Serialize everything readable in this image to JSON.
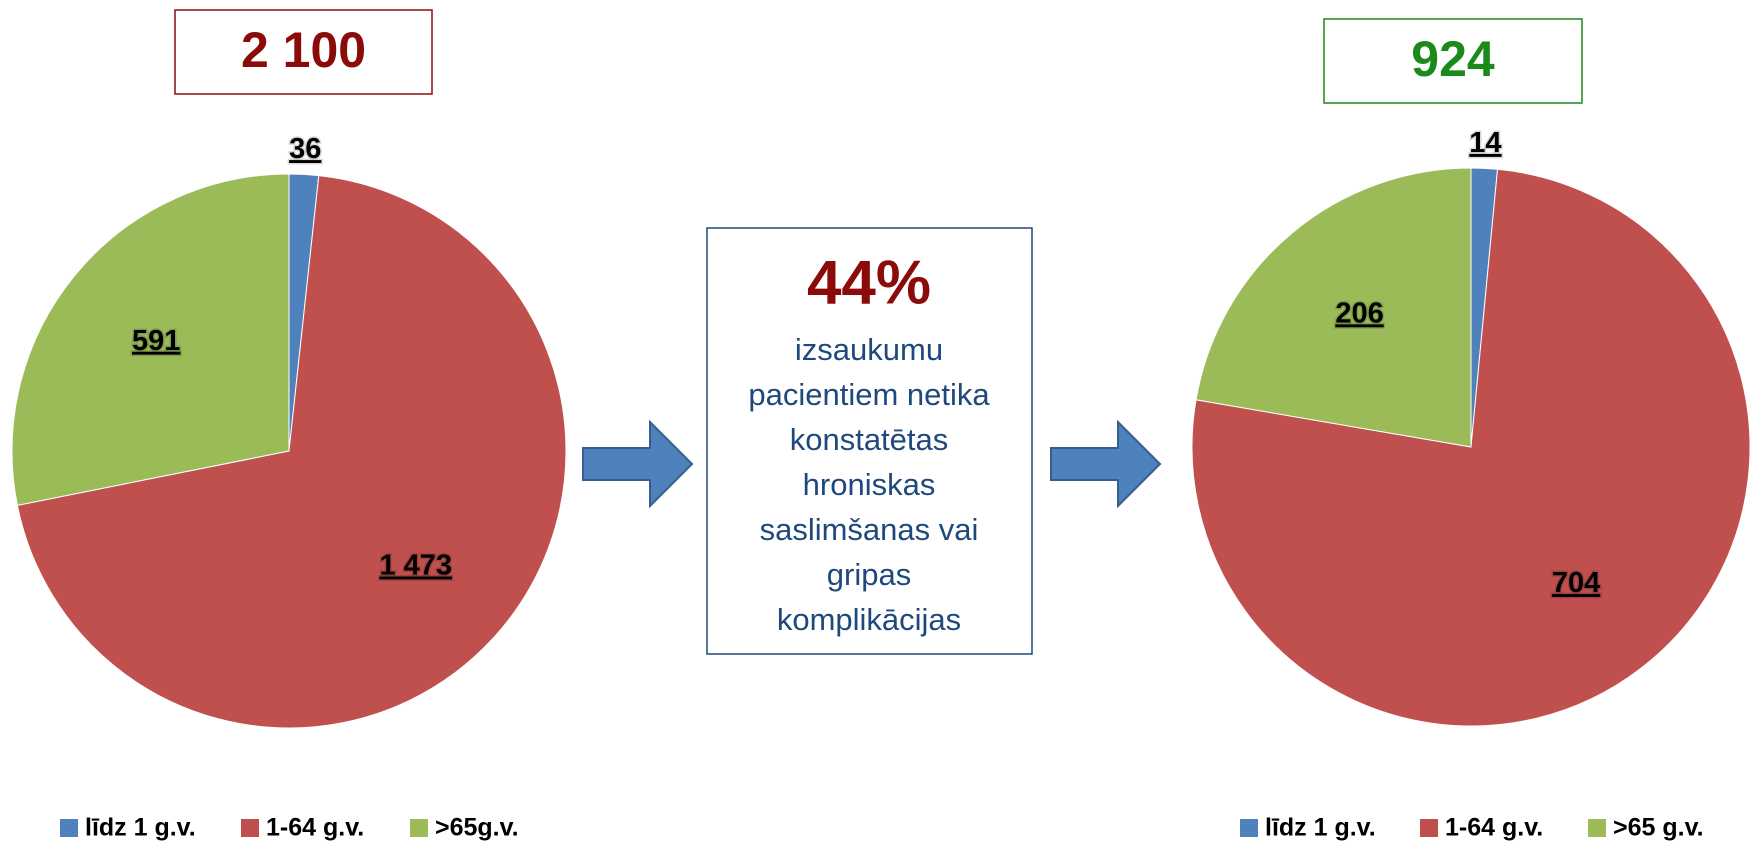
{
  "chart_data": [
    {
      "type": "pie",
      "title": "2 100",
      "title_color": "#8b0a0a",
      "categories": [
        "līdz 1 g.v.",
        "1-64 g.v.",
        ">65g.v."
      ],
      "values": [
        36,
        1473,
        591
      ],
      "value_labels": [
        "36",
        "1 473",
        "591"
      ],
      "colors": [
        "#4f81bd",
        "#c0504d",
        "#9bbb59"
      ]
    },
    {
      "type": "pie",
      "title": "924",
      "title_color": "#1a8a1a",
      "categories": [
        "līdz 1 g.v.",
        "1-64 g.v.",
        ">65 g.v."
      ],
      "values": [
        14,
        704,
        206
      ],
      "value_labels": [
        "14",
        "704",
        "206"
      ],
      "colors": [
        "#4f81bd",
        "#c0504d",
        "#9bbb59"
      ]
    }
  ],
  "callout": {
    "headline": "44%",
    "lines": [
      "izsaukumu",
      "pacientiem netika",
      "konstatētas",
      "hroniskas",
      "saslimšanas vai",
      "gripas",
      "komplikācijas"
    ]
  }
}
